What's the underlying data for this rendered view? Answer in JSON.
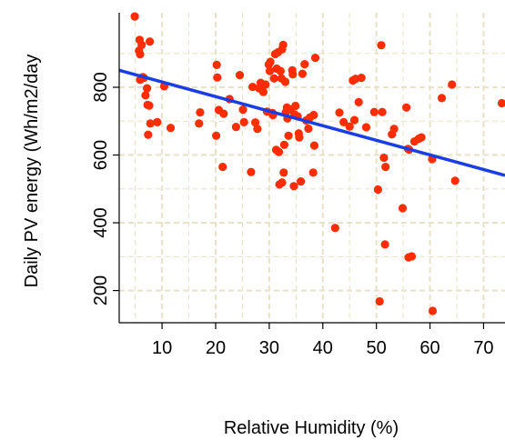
{
  "chart_data": {
    "type": "scatter",
    "xlabel": "Relative Humidity (%)",
    "ylabel": "Daily PV energy (Wh/m2/day",
    "xlim": [
      2,
      74
    ],
    "ylim": [
      105,
      1020
    ],
    "x_ticks": [
      10,
      20,
      30,
      40,
      50,
      60,
      70
    ],
    "y_ticks": [
      200,
      400,
      600,
      800
    ],
    "grid": true,
    "colors": {
      "points": "#ff2d00",
      "trend": "#1a3de6",
      "grid": "#e8e2c8",
      "axis": "#000000"
    },
    "trend_line": {
      "x": [
        2,
        74
      ],
      "y": [
        850,
        540
      ]
    },
    "points": [
      {
        "x": 4.9,
        "y": 1009
      },
      {
        "x": 5.8,
        "y": 940
      },
      {
        "x": 5.7,
        "y": 908
      },
      {
        "x": 5.9,
        "y": 897
      },
      {
        "x": 6.2,
        "y": 925
      },
      {
        "x": 6.4,
        "y": 830
      },
      {
        "x": 6.6,
        "y": 828
      },
      {
        "x": 5.9,
        "y": 822
      },
      {
        "x": 6.9,
        "y": 776
      },
      {
        "x": 7.2,
        "y": 797
      },
      {
        "x": 7.7,
        "y": 935
      },
      {
        "x": 7.3,
        "y": 748
      },
      {
        "x": 7.6,
        "y": 746
      },
      {
        "x": 7.8,
        "y": 693
      },
      {
        "x": 7.4,
        "y": 660
      },
      {
        "x": 9.1,
        "y": 697
      },
      {
        "x": 10.4,
        "y": 803
      },
      {
        "x": 11.6,
        "y": 680
      },
      {
        "x": 17.1,
        "y": 726
      },
      {
        "x": 16.9,
        "y": 693
      },
      {
        "x": 20.2,
        "y": 866
      },
      {
        "x": 20.3,
        "y": 829
      },
      {
        "x": 20.1,
        "y": 657
      },
      {
        "x": 20.6,
        "y": 733
      },
      {
        "x": 21.5,
        "y": 722
      },
      {
        "x": 21.3,
        "y": 565
      },
      {
        "x": 22.6,
        "y": 765
      },
      {
        "x": 23.8,
        "y": 683
      },
      {
        "x": 24.5,
        "y": 836
      },
      {
        "x": 25.1,
        "y": 734
      },
      {
        "x": 25.3,
        "y": 697
      },
      {
        "x": 26.6,
        "y": 550
      },
      {
        "x": 26.9,
        "y": 801
      },
      {
        "x": 27.4,
        "y": 696
      },
      {
        "x": 27.8,
        "y": 677
      },
      {
        "x": 28.1,
        "y": 797
      },
      {
        "x": 28.4,
        "y": 813
      },
      {
        "x": 28.9,
        "y": 786
      },
      {
        "x": 29.3,
        "y": 808
      },
      {
        "x": 29.6,
        "y": 728
      },
      {
        "x": 29.9,
        "y": 867
      },
      {
        "x": 30.2,
        "y": 875
      },
      {
        "x": 30.1,
        "y": 848
      },
      {
        "x": 30.6,
        "y": 724
      },
      {
        "x": 30.7,
        "y": 718
      },
      {
        "x": 30.9,
        "y": 826
      },
      {
        "x": 31.1,
        "y": 898
      },
      {
        "x": 31.3,
        "y": 615
      },
      {
        "x": 31.4,
        "y": 855
      },
      {
        "x": 31.6,
        "y": 903
      },
      {
        "x": 31.8,
        "y": 609
      },
      {
        "x": 31.9,
        "y": 513
      },
      {
        "x": 32.1,
        "y": 848
      },
      {
        "x": 32.3,
        "y": 826
      },
      {
        "x": 32.4,
        "y": 912
      },
      {
        "x": 32.6,
        "y": 925
      },
      {
        "x": 32.4,
        "y": 519
      },
      {
        "x": 32.7,
        "y": 548
      },
      {
        "x": 32.8,
        "y": 630
      },
      {
        "x": 33.0,
        "y": 816
      },
      {
        "x": 33.1,
        "y": 726
      },
      {
        "x": 33.3,
        "y": 740
      },
      {
        "x": 33.4,
        "y": 708
      },
      {
        "x": 33.6,
        "y": 657
      },
      {
        "x": 33.9,
        "y": 735
      },
      {
        "x": 34.3,
        "y": 850
      },
      {
        "x": 34.4,
        "y": 838
      },
      {
        "x": 34.7,
        "y": 720
      },
      {
        "x": 34.9,
        "y": 745
      },
      {
        "x": 34.6,
        "y": 508
      },
      {
        "x": 35.3,
        "y": 714
      },
      {
        "x": 35.5,
        "y": 664
      },
      {
        "x": 35.6,
        "y": 652
      },
      {
        "x": 35.9,
        "y": 522
      },
      {
        "x": 36.2,
        "y": 840
      },
      {
        "x": 36.6,
        "y": 868
      },
      {
        "x": 36.9,
        "y": 702
      },
      {
        "x": 37.3,
        "y": 678
      },
      {
        "x": 37.6,
        "y": 711
      },
      {
        "x": 38.2,
        "y": 548
      },
      {
        "x": 38.3,
        "y": 718
      },
      {
        "x": 38.6,
        "y": 887
      },
      {
        "x": 38.4,
        "y": 628
      },
      {
        "x": 42.3,
        "y": 385
      },
      {
        "x": 43.1,
        "y": 725
      },
      {
        "x": 43.9,
        "y": 697
      },
      {
        "x": 45.0,
        "y": 684
      },
      {
        "x": 45.6,
        "y": 820
      },
      {
        "x": 45.9,
        "y": 703
      },
      {
        "x": 46.1,
        "y": 825
      },
      {
        "x": 46.7,
        "y": 756
      },
      {
        "x": 47.2,
        "y": 828
      },
      {
        "x": 48.1,
        "y": 682
      },
      {
        "x": 49.6,
        "y": 727
      },
      {
        "x": 50.3,
        "y": 498
      },
      {
        "x": 50.6,
        "y": 168
      },
      {
        "x": 50.9,
        "y": 924
      },
      {
        "x": 51.1,
        "y": 727
      },
      {
        "x": 51.4,
        "y": 592
      },
      {
        "x": 51.7,
        "y": 565
      },
      {
        "x": 51.6,
        "y": 336
      },
      {
        "x": 52.9,
        "y": 661
      },
      {
        "x": 53.3,
        "y": 677
      },
      {
        "x": 54.9,
        "y": 443
      },
      {
        "x": 55.6,
        "y": 740
      },
      {
        "x": 55.9,
        "y": 618
      },
      {
        "x": 56.1,
        "y": 616
      },
      {
        "x": 56.0,
        "y": 298
      },
      {
        "x": 56.6,
        "y": 301
      },
      {
        "x": 57.1,
        "y": 640
      },
      {
        "x": 57.9,
        "y": 648
      },
      {
        "x": 58.4,
        "y": 652
      },
      {
        "x": 60.4,
        "y": 588
      },
      {
        "x": 60.5,
        "y": 140
      },
      {
        "x": 62.2,
        "y": 768
      },
      {
        "x": 64.1,
        "y": 808
      },
      {
        "x": 64.7,
        "y": 524
      },
      {
        "x": 73.4,
        "y": 753
      }
    ]
  }
}
